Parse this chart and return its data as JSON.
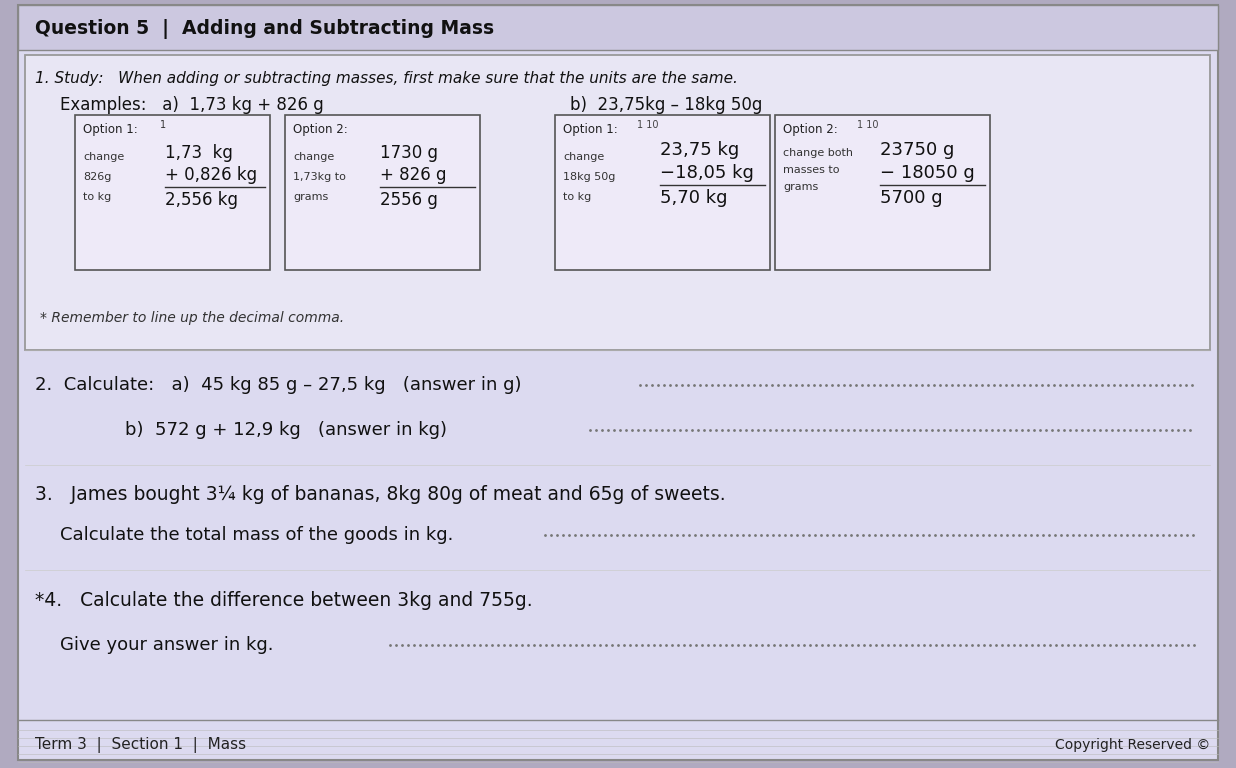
{
  "bg_outer": "#b0aac0",
  "bg_color": "#c8c4d8",
  "paper_color": "#dcdaf0",
  "inner_color": "#e8e6f4",
  "box_color": "#eeeaf8",
  "title": "Question 5  |  Adding and Subtracting Mass",
  "section1_header": "1. Study:   When adding or subtracting masses, first make sure that the units are the same.",
  "example_a_label": "Examples:   a)  1,73 kg + 826 g",
  "example_b_label": "b)  23,75kg – 18kg 50g",
  "box1_title": "Option 1:",
  "box1_super": "1",
  "box1_annot": [
    "change",
    "826g",
    "to kg"
  ],
  "box1_vals": [
    "1,73  kg",
    "+ 0,826 kg",
    "2,556 kg"
  ],
  "box2_title": "Option 2:",
  "box2_annot": [
    "change",
    "1,73kg to",
    "grams"
  ],
  "box2_vals": [
    "1730 g",
    "+ 826 g",
    "2556 g"
  ],
  "box3_title": "Option 1:",
  "box3_super": "1 10",
  "box3_annot": [
    "change",
    "18kg 50g",
    "to kg"
  ],
  "box3_vals": [
    "23,75 kg",
    "−18,05 kg",
    "5,70 kg"
  ],
  "box4_title": "Option 2:",
  "box4_super": "1 10",
  "box4_annot": [
    "change both",
    "masses to",
    "grams"
  ],
  "box4_vals": [
    "23750 g",
    "− 18050 g",
    "5700 g"
  ],
  "remember": "* Remember to line up the decimal comma.",
  "q2a": "2.  Calculate:   a)  45 kg 85 g – 27,5 kg   (answer in g)",
  "q2b": "b)  572 g + 12,9 kg   (answer in kg)",
  "q3a": "3.   James bought 3¼ kg of bananas, 8kg 80g of meat and 65g of sweets.",
  "q3b": "Calculate the total mass of the goods in kg.",
  "q4a": "*4.   Calculate the difference between 3kg and 755g.",
  "q4b": "Give your answer in kg.",
  "footer_left": "Term 3  |  Section 1  |  Mass",
  "footer_right": "Copyright Reserved ©"
}
